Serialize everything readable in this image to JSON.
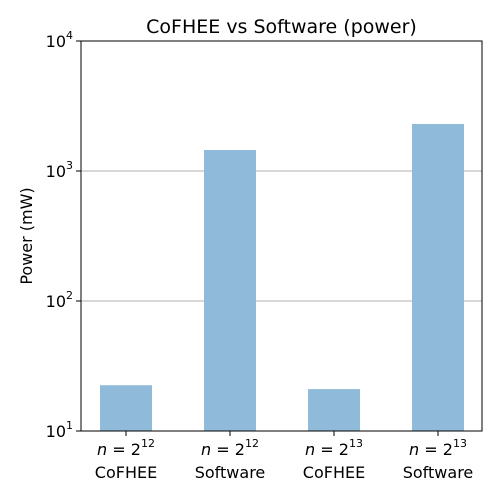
{
  "chart_data": {
    "type": "bar",
    "title": "CoFHEE vs Software (power)",
    "xlabel": "",
    "ylabel": "Power (mW)",
    "yscale": "log",
    "ylim": [
      10,
      10000
    ],
    "grid": "y-major",
    "legend": "none",
    "bar_color": "#8fbad9",
    "categories": [
      {
        "var": "n",
        "base": "2",
        "exp": "12",
        "label": "CoFHEE"
      },
      {
        "var": "n",
        "base": "2",
        "exp": "12",
        "label": "Software"
      },
      {
        "var": "n",
        "base": "2",
        "exp": "13",
        "label": "CoFHEE"
      },
      {
        "var": "n",
        "base": "2",
        "exp": "13",
        "label": "Software"
      }
    ],
    "values": [
      22.5,
      1450,
      21,
      2300
    ],
    "yticks": [
      {
        "value": 10,
        "base": "10",
        "exp": "1"
      },
      {
        "value": 100,
        "base": "10",
        "exp": "2"
      },
      {
        "value": 1000,
        "base": "10",
        "exp": "3"
      },
      {
        "value": 10000,
        "base": "10",
        "exp": "4"
      }
    ]
  }
}
